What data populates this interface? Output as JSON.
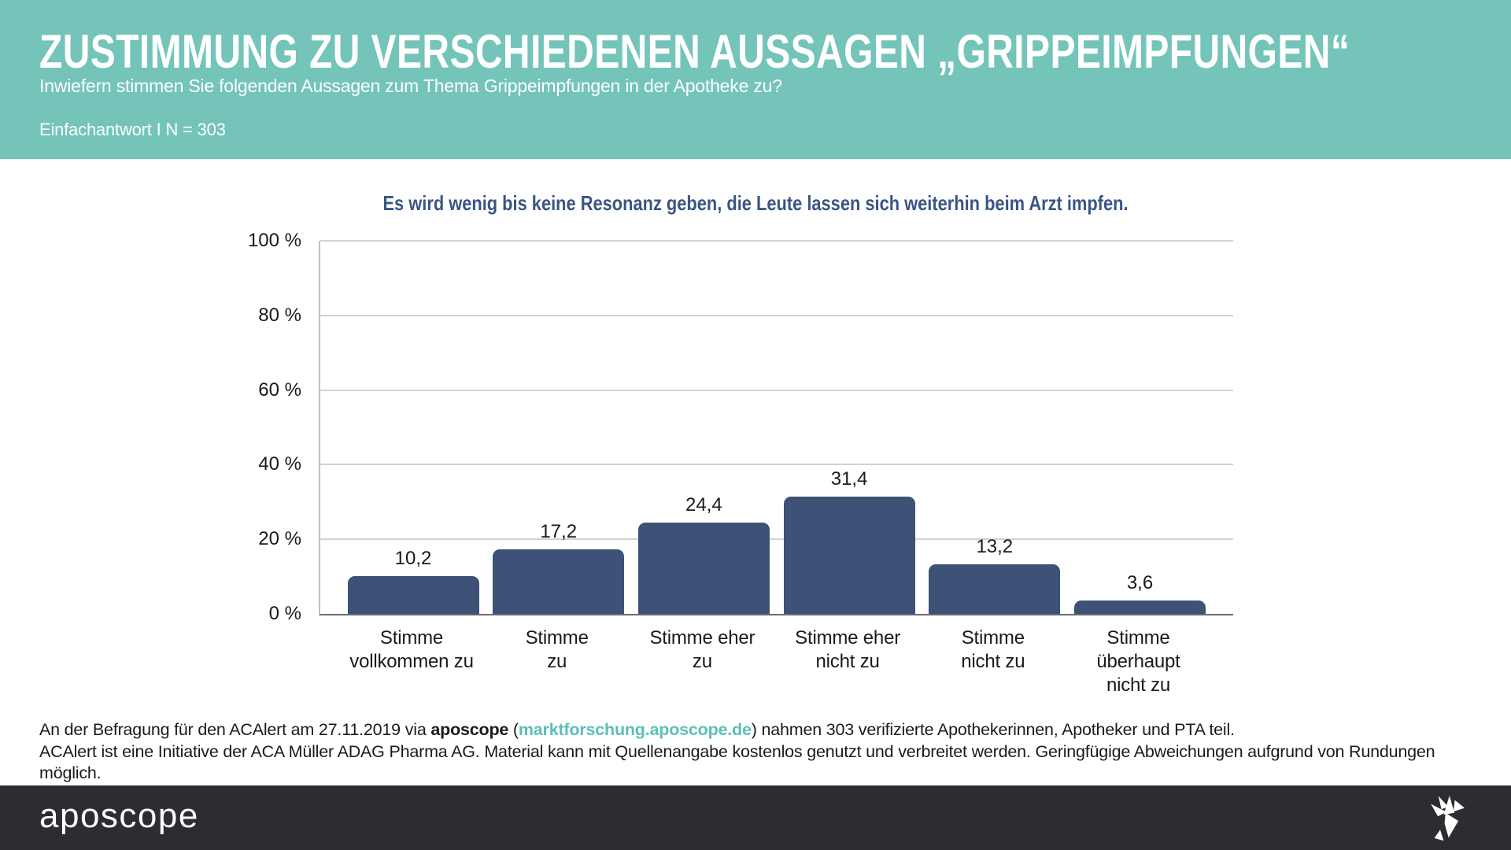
{
  "header": {
    "title": "ZUSTIMMUNG ZU VERSCHIEDENEN AUSSAGEN „GRIPPEIMPFUNGEN“",
    "subtitle": "Inwiefern stimmen Sie folgenden Aussagen zum Thema Grippeimpfungen in der Apotheke zu?",
    "meta": "Einfachantwort I N = 303",
    "background_color": "#74c4ba"
  },
  "chart_data": {
    "type": "bar",
    "title": "Es wird wenig bis keine Resonanz geben, die Leute lassen sich weiterhin beim Arzt impfen.",
    "categories": [
      "Stimme vollkommen zu",
      "Stimme zu",
      "Stimme eher zu",
      "Stimme eher nicht zu",
      "Stimme nicht zu",
      "Stimme überhaupt nicht zu"
    ],
    "category_lines": [
      [
        "Stimme",
        "vollkommen zu"
      ],
      [
        "Stimme",
        "zu"
      ],
      [
        "Stimme eher",
        "zu"
      ],
      [
        "Stimme eher",
        "nicht zu"
      ],
      [
        "Stimme",
        "nicht zu"
      ],
      [
        "Stimme",
        "überhaupt",
        "nicht zu"
      ]
    ],
    "values": [
      10.2,
      17.2,
      24.4,
      31.4,
      13.2,
      3.6
    ],
    "value_labels": [
      "10,2",
      "17,2",
      "24,4",
      "31,4",
      "13,2",
      "3,6"
    ],
    "unit": "%",
    "xlabel": "",
    "ylabel": "",
    "ylim": [
      0,
      100
    ],
    "yticks": [
      {
        "value": 0,
        "label": "0 %"
      },
      {
        "value": 20,
        "label": "20 %"
      },
      {
        "value": 40,
        "label": "40 %"
      },
      {
        "value": 60,
        "label": "60 %"
      },
      {
        "value": 80,
        "label": "80 %"
      },
      {
        "value": 100,
        "label": "100 %"
      }
    ],
    "grid": true,
    "legend": false,
    "bar_color": "#3d5276",
    "title_color": "#3a5584"
  },
  "source": {
    "line1_prefix": "An der Befragung für den ACAlert am 27.11.2019 via ",
    "line1_bold": "aposcope",
    "line1_open_paren": " (",
    "line1_link": "marktforschung.aposcope.de",
    "line1_suffix": ") nahmen 303 verifizierte Apothekerinnen, Apotheker und PTA teil.",
    "line2": "ACAlert ist eine Initiative der ACA Müller ADAG Pharma AG. Material kann mit Quellenangabe kostenlos genutzt und verbreitet werden. Geringfügige Abweichungen aufgrund von Rundungen möglich.",
    "link_color": "#5bc0b6"
  },
  "footer": {
    "logo_text": "aposcope",
    "background_color": "#2b2d30",
    "bird_icon": "origami-bird-icon"
  }
}
